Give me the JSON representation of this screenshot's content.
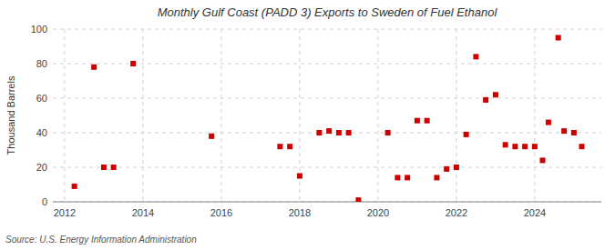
{
  "chart_data": {
    "type": "scatter",
    "title": "Monthly Gulf Coast (PADD 3) Exports to Sweden of Fuel Ethanol",
    "ylabel": "Thousand Barrels",
    "source": "Source: U.S. Energy Information Administration",
    "x": [
      2012.25,
      2012.75,
      2013.0,
      2013.25,
      2013.75,
      2015.75,
      2017.5,
      2017.75,
      2018.0,
      2018.5,
      2018.75,
      2019.0,
      2019.25,
      2019.5,
      2020.25,
      2020.5,
      2020.75,
      2021.0,
      2021.25,
      2021.5,
      2021.75,
      2022.0,
      2022.25,
      2022.5,
      2022.75,
      2023.0,
      2023.25,
      2023.5,
      2023.75,
      2024.0,
      2024.2,
      2024.35,
      2024.6,
      2024.75,
      2025.0,
      2025.2
    ],
    "values": [
      9,
      78,
      20,
      20,
      80,
      38,
      32,
      32,
      15,
      40,
      41,
      40,
      40,
      1,
      40,
      14,
      14,
      47,
      47,
      14,
      19,
      20,
      39,
      84,
      59,
      62,
      33,
      32,
      32,
      32,
      24,
      46,
      95,
      41,
      40,
      32
    ],
    "xlim": [
      2011.7,
      2025.7
    ],
    "ylim": [
      0,
      100
    ],
    "xticks": [
      2012,
      2014,
      2016,
      2018,
      2020,
      2022,
      2024
    ],
    "yticks": [
      0,
      20,
      40,
      60,
      80,
      100
    ],
    "color": "#cc0000",
    "marker": "square",
    "grid": true
  }
}
